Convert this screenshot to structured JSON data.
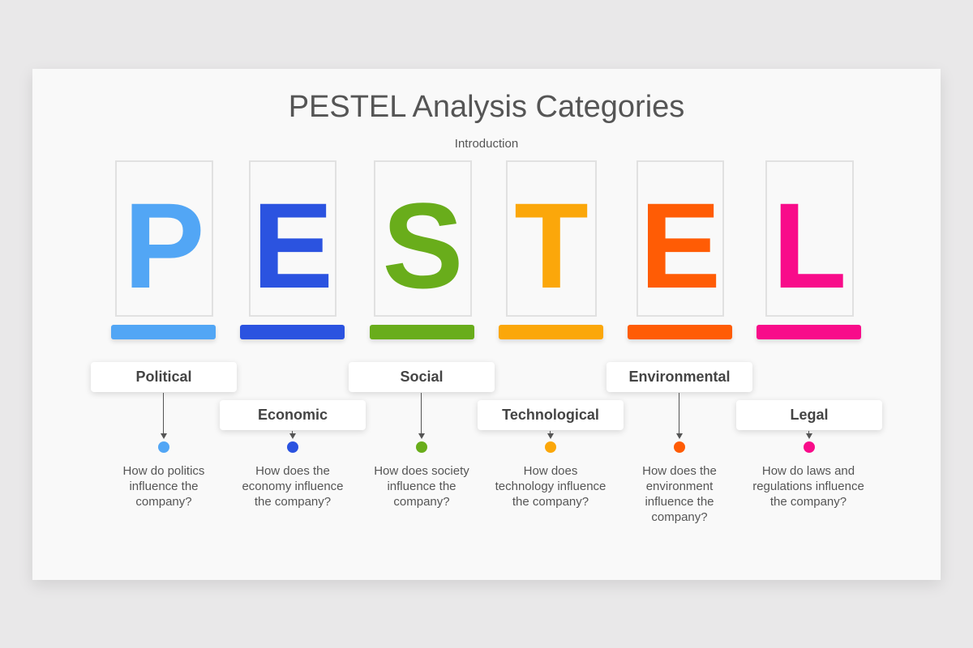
{
  "title": "PESTEL Analysis Categories",
  "subtitle": "Introduction",
  "categories": [
    {
      "letter": "P",
      "label": "Political",
      "question": "How do politics influence the company?",
      "color": "#52a6f5"
    },
    {
      "letter": "E",
      "label": "Economic",
      "question": "How does the economy influence the company?",
      "color": "#2b53e0"
    },
    {
      "letter": "S",
      "label": "Social",
      "question": "How does society influence the company?",
      "color": "#69ad1b"
    },
    {
      "letter": "T",
      "label": "Technological",
      "question": "How does technology influence the company?",
      "color": "#fba70a"
    },
    {
      "letter": "E",
      "label": "Environmental",
      "question": "How does the environment influence the company?",
      "color": "#ff5c05"
    },
    {
      "letter": "L",
      "label": "Legal",
      "question": "How do laws and regulations influence the company?",
      "color": "#f80c8a"
    }
  ]
}
